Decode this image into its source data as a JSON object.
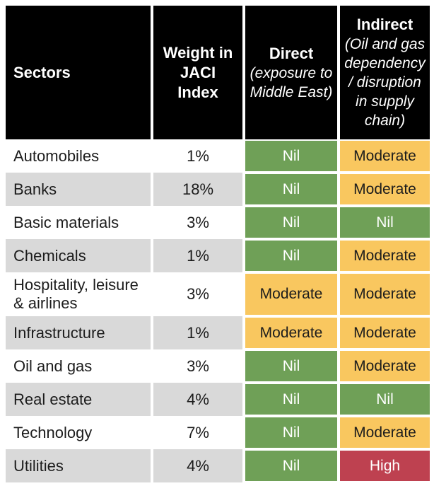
{
  "header": {
    "sectors_label": "Sectors",
    "weight_label": "Weight in\nJACI\nIndex",
    "direct_title": "Direct",
    "direct_sub": "(exposure to\nMiddle East)",
    "indirect_title": "Indirect",
    "indirect_sub": "(Oil and gas\ndependency\n/ disruption\nin supply\nchain)"
  },
  "rows": [
    {
      "sector": "Automobiles",
      "weight": "1%",
      "direct": "Nil",
      "indirect": "Moderate"
    },
    {
      "sector": "Banks",
      "weight": "18%",
      "direct": "Nil",
      "indirect": "Moderate"
    },
    {
      "sector": "Basic materials",
      "weight": "3%",
      "direct": "Nil",
      "indirect": "Nil"
    },
    {
      "sector": "Chemicals",
      "weight": "1%",
      "direct": "Nil",
      "indirect": "Moderate"
    },
    {
      "sector": "Hospitality, leisure & airlines",
      "weight": "3%",
      "direct": "Moderate",
      "indirect": "Moderate"
    },
    {
      "sector": "Infrastructure",
      "weight": "1%",
      "direct": "Moderate",
      "indirect": "Moderate"
    },
    {
      "sector": "Oil and gas",
      "weight": "3%",
      "direct": "Nil",
      "indirect": "Moderate"
    },
    {
      "sector": "Real estate",
      "weight": "4%",
      "direct": "Nil",
      "indirect": "Nil"
    },
    {
      "sector": "Technology",
      "weight": "7%",
      "direct": "Nil",
      "indirect": "Moderate"
    },
    {
      "sector": "Utilities",
      "weight": "4%",
      "direct": "Nil",
      "indirect": "High"
    }
  ],
  "colors": {
    "header_bg": "#000000",
    "header_text": "#ffffff",
    "row_bg": "#ffffff",
    "row_shaded_bg": "#d9d9d9",
    "body_text": "#1c1c1c",
    "rating_bg": {
      "Nil": "#6fa057",
      "Moderate": "#f9c75f",
      "High": "#be4150"
    },
    "rating_text": {
      "Nil": "#ffffff",
      "Moderate": "#1c1c1c",
      "High": "#ffffff"
    }
  },
  "chart_data": {
    "type": "table",
    "columns": [
      "Sectors",
      "Weight in JACI Index",
      "Direct (exposure to Middle East)",
      "Indirect (Oil and gas dependency / disruption in supply chain)"
    ],
    "rows": [
      [
        "Automobiles",
        "1%",
        "Nil",
        "Moderate"
      ],
      [
        "Banks",
        "18%",
        "Nil",
        "Moderate"
      ],
      [
        "Basic materials",
        "3%",
        "Nil",
        "Nil"
      ],
      [
        "Chemicals",
        "1%",
        "Nil",
        "Moderate"
      ],
      [
        "Hospitality, leisure & airlines",
        "3%",
        "Moderate",
        "Moderate"
      ],
      [
        "Infrastructure",
        "1%",
        "Moderate",
        "Moderate"
      ],
      [
        "Oil and gas",
        "3%",
        "Nil",
        "Moderate"
      ],
      [
        "Real estate",
        "4%",
        "Nil",
        "Nil"
      ],
      [
        "Technology",
        "7%",
        "Nil",
        "Moderate"
      ],
      [
        "Utilities",
        "4%",
        "Nil",
        "High"
      ]
    ],
    "legend": "Cell color encodes impact level: Nil = green, Moderate = amber, High = red"
  }
}
